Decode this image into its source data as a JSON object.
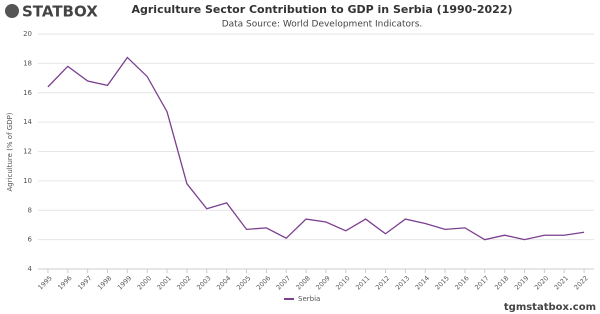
{
  "logo": "STATBOX",
  "footer": "tgmstatbox.com",
  "chart_data": {
    "type": "line",
    "title": "Agriculture Sector Contribution to GDP in Serbia (1990-2022)",
    "subtitle": "Data Source: World Development Indicators.",
    "y_label": "Agriculture (% of GDP)",
    "categories": [
      "1995",
      "1996",
      "1997",
      "1998",
      "1999",
      "2000",
      "2001",
      "2002",
      "2003",
      "2004",
      "2005",
      "2006",
      "2007",
      "2008",
      "2009",
      "2010",
      "2011",
      "2012",
      "2013",
      "2014",
      "2015",
      "2016",
      "2017",
      "2018",
      "2019",
      "2020",
      "2021",
      "2022"
    ],
    "series": [
      {
        "name": "Serbia",
        "color": "#7b3f8f",
        "values": [
          16.4,
          17.8,
          16.8,
          16.5,
          18.4,
          17.1,
          14.7,
          9.8,
          8.1,
          8.5,
          6.7,
          6.8,
          6.1,
          7.4,
          7.2,
          6.6,
          7.4,
          6.4,
          7.4,
          7.1,
          6.7,
          6.8,
          6.0,
          6.3,
          6.0,
          6.3,
          6.3,
          6.5
        ]
      }
    ],
    "ylim": [
      4,
      20
    ],
    "yticks": [
      4,
      6,
      8,
      10,
      12,
      14,
      16,
      18,
      20
    ],
    "grid": true
  }
}
